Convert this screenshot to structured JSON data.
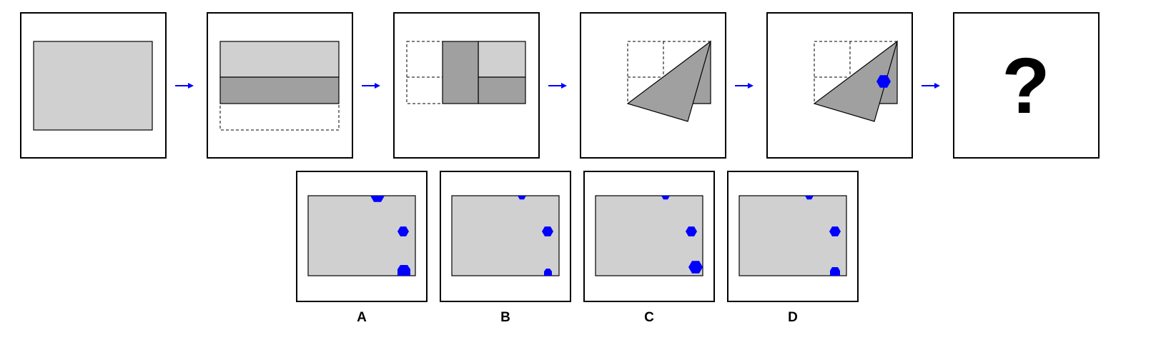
{
  "colors": {
    "paper": "#d0d0d0",
    "fold": "#a0a0a0",
    "hole": "#0000ff",
    "arrow": "#0000ff",
    "border": "#000000"
  },
  "sequence": {
    "steps": [
      {
        "name": "unfolded-paper"
      },
      {
        "name": "fold-bottom-up"
      },
      {
        "name": "fold-left-right"
      },
      {
        "name": "fold-diagonal"
      },
      {
        "name": "punch-hole"
      },
      {
        "name": "unknown-result",
        "text": "?"
      }
    ],
    "arrow_count": 5
  },
  "options": [
    {
      "label": "A",
      "holes": [
        "top-large",
        "right-middle",
        "bottom-right-large"
      ]
    },
    {
      "label": "B",
      "holes": [
        "top-small",
        "right-middle",
        "bottom-right-small"
      ]
    },
    {
      "label": "C",
      "holes": [
        "top-small",
        "right-middle",
        "bottom-right-corner-large"
      ]
    },
    {
      "label": "D",
      "holes": [
        "top-small",
        "right-middle",
        "bottom-right-medium"
      ]
    }
  ]
}
